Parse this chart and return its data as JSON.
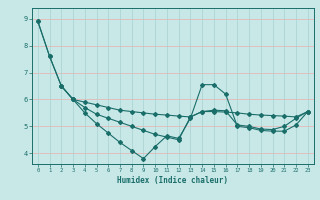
{
  "title": "",
  "xlabel": "Humidex (Indice chaleur)",
  "bg_color": "#c8e8e8",
  "line_color": "#1a6e6a",
  "grid_color_h": "#e8b8b8",
  "grid_color_v": "#a8d0d0",
  "xlim": [
    -0.5,
    23.5
  ],
  "ylim": [
    3.6,
    9.4
  ],
  "xticks": [
    0,
    1,
    2,
    3,
    4,
    5,
    6,
    7,
    8,
    9,
    10,
    11,
    12,
    13,
    14,
    15,
    16,
    17,
    18,
    19,
    20,
    21,
    22,
    23
  ],
  "yticks": [
    4,
    5,
    6,
    7,
    8,
    9
  ],
  "line1_x": [
    0,
    1,
    2,
    3,
    4,
    5,
    6,
    7,
    8,
    9,
    10,
    11,
    12,
    13,
    14,
    15,
    16,
    17,
    18,
    19,
    20,
    21,
    22,
    23
  ],
  "line1_y": [
    8.9,
    7.6,
    6.5,
    6.0,
    5.9,
    5.8,
    5.7,
    5.6,
    5.55,
    5.5,
    5.45,
    5.42,
    5.38,
    5.35,
    5.55,
    5.55,
    5.53,
    5.5,
    5.45,
    5.42,
    5.4,
    5.38,
    5.35,
    5.55
  ],
  "line2_x": [
    2,
    3,
    4,
    5,
    6,
    7,
    8,
    9,
    10,
    11,
    12,
    13,
    14,
    15,
    16,
    17,
    18,
    19,
    20,
    21,
    22,
    23
  ],
  "line2_y": [
    6.5,
    6.0,
    5.5,
    5.1,
    4.75,
    4.4,
    4.1,
    3.8,
    4.25,
    4.65,
    4.55,
    5.3,
    6.55,
    6.55,
    6.2,
    5.0,
    4.95,
    4.85,
    4.82,
    4.82,
    5.05,
    5.55
  ],
  "line3_x": [
    0,
    1,
    2,
    3,
    4,
    5,
    6,
    7,
    8,
    9,
    10,
    11,
    12,
    13,
    14,
    15,
    16,
    17,
    18,
    19,
    20,
    21,
    22,
    23
  ],
  "line3_y": [
    8.9,
    7.6,
    6.5,
    6.0,
    5.7,
    5.45,
    5.3,
    5.15,
    5.0,
    4.85,
    4.7,
    4.6,
    4.5,
    5.35,
    5.55,
    5.6,
    5.58,
    5.05,
    5.0,
    4.9,
    4.88,
    5.0,
    5.3,
    5.55
  ]
}
